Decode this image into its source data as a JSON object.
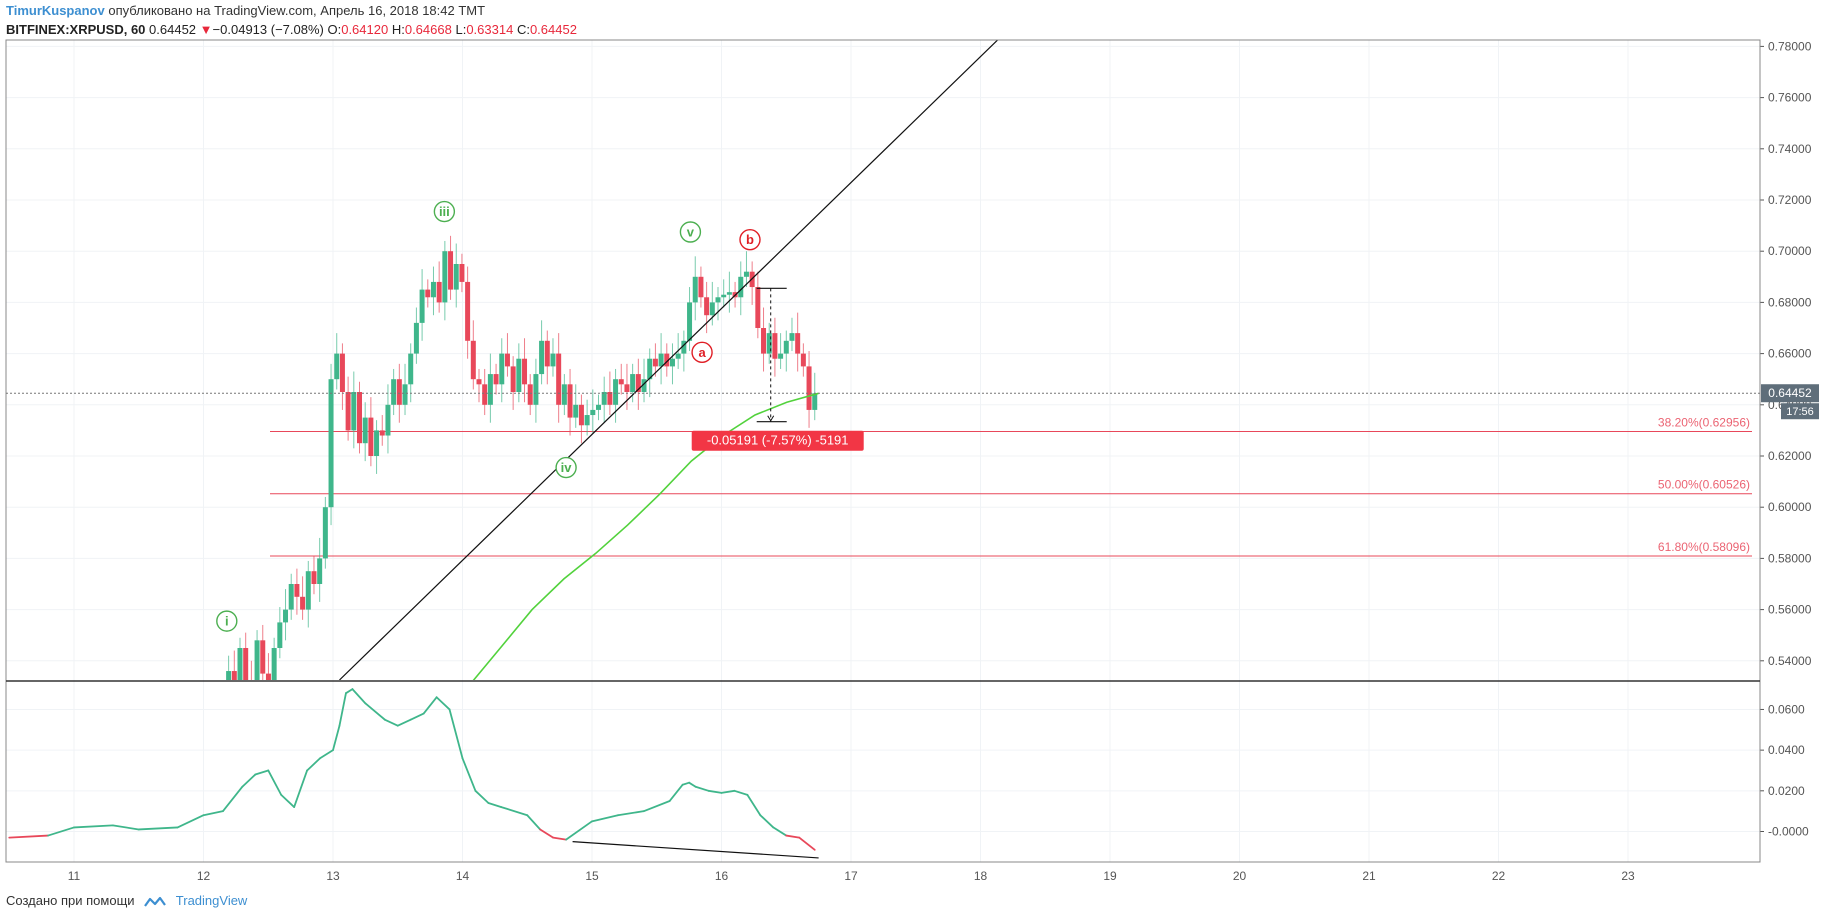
{
  "header": {
    "author": "TimurKuspanov",
    "published_text": "опубликовано на TradingView.com, Апрель 16, 2018 18:42 TMT",
    "symbol": "BITFINEX:XRPUSD, 60",
    "last": "0.64452",
    "arrow": "▼",
    "change": "−0.04913 (−7.08%)",
    "o_label": "O:",
    "o_value": "0.64120",
    "h_label": "H:",
    "h_value": "0.64668",
    "l_label": "L:",
    "l_value": "0.63314",
    "c_label": "C:",
    "c_value": "0.64452"
  },
  "footer": {
    "created_with": "Создано при помощи",
    "brand": "TradingView",
    "brand_icon": "tradingview-logo-icon"
  },
  "colors": {
    "up": "#3fb68b",
    "down": "#e8485a",
    "ma": "#52d23c",
    "fib": "#e8485a",
    "wave_green": "#4caf50",
    "wave_red": "#e01f26",
    "grid": "#f0f3f6"
  },
  "chart_data": {
    "type": "candlestick",
    "x_ticks": [
      "11",
      "12",
      "13",
      "14",
      "15",
      "16",
      "17",
      "18",
      "19",
      "20",
      "21",
      "22",
      "23"
    ],
    "y_ticks": [
      "0.54000",
      "0.56000",
      "0.58000",
      "0.60000",
      "0.62000",
      "0.64000",
      "0.66000",
      "0.68000",
      "0.70000",
      "0.72000",
      "0.74000",
      "0.76000",
      "0.78000"
    ],
    "ylim": [
      0.5325,
      0.7825
    ],
    "price_label": "0.64452",
    "timer_label": "17:56",
    "candles_close": [
      0.522,
      0.536,
      0.529,
      0.545,
      0.532,
      0.528,
      0.548,
      0.535,
      0.52,
      0.545,
      0.555,
      0.56,
      0.57,
      0.565,
      0.56,
      0.575,
      0.57,
      0.58,
      0.6,
      0.65,
      0.66,
      0.645,
      0.63,
      0.645,
      0.625,
      0.635,
      0.62,
      0.63,
      0.628,
      0.64,
      0.65,
      0.64,
      0.648,
      0.66,
      0.672,
      0.685,
      0.682,
      0.688,
      0.68,
      0.7,
      0.685,
      0.695,
      0.688,
      0.665,
      0.65,
      0.648,
      0.64,
      0.652,
      0.648,
      0.66,
      0.655,
      0.645,
      0.658,
      0.648,
      0.64,
      0.652,
      0.665,
      0.655,
      0.66,
      0.64,
      0.648,
      0.635,
      0.64,
      0.632,
      0.636,
      0.638,
      0.64,
      0.645,
      0.64,
      0.65,
      0.648,
      0.645,
      0.652,
      0.645,
      0.65,
      0.658,
      0.655,
      0.66,
      0.655,
      0.658,
      0.66,
      0.665,
      0.68,
      0.69,
      0.682,
      0.675,
      0.68,
      0.682,
      0.683,
      0.684,
      0.682,
      0.69,
      0.692,
      0.686,
      0.67,
      0.66,
      0.668,
      0.658,
      0.66,
      0.665,
      0.668,
      0.66,
      0.655,
      0.638,
      0.6445
    ],
    "ma_series": [
      0.5,
      0.53,
      0.545,
      0.56,
      0.572,
      0.582,
      0.593,
      0.605,
      0.618,
      0.628,
      0.636,
      0.641,
      0.6445
    ],
    "trendline": {
      "x0": 13.05,
      "y0": 0.5325,
      "x1": 16.15,
      "y1": 0.685
    },
    "fib_levels": [
      {
        "label": "38.20%(0.62956)",
        "value": 0.62956
      },
      {
        "label": "50.00%(0.60526)",
        "value": 0.60526
      },
      {
        "label": "61.80%(0.58096)",
        "value": 0.58096
      }
    ],
    "measure": {
      "from": 0.6855,
      "to": 0.6334,
      "label": "-0.05191 (-7.57%) -5191"
    },
    "wave_labels": [
      {
        "text": "i",
        "x": 12.18,
        "y": 0.5555,
        "color": "green"
      },
      {
        "text": "iii",
        "x": 13.86,
        "y": 0.7155,
        "color": "green"
      },
      {
        "text": "iv",
        "x": 14.8,
        "y": 0.6155,
        "color": "green"
      },
      {
        "text": "v",
        "x": 15.76,
        "y": 0.7075,
        "color": "green"
      },
      {
        "text": "a",
        "x": 15.85,
        "y": 0.6605,
        "color": "red"
      },
      {
        "text": "b",
        "x": 16.22,
        "y": 0.7045,
        "color": "red"
      }
    ],
    "oscillator": {
      "y_ticks": [
        "0.0600",
        "0.0400",
        "0.0200",
        "-0.0000"
      ],
      "ylim": [
        -0.015,
        0.0735
      ],
      "x": [
        10.5,
        10.8,
        11.0,
        11.3,
        11.5,
        11.8,
        12.0,
        12.15,
        12.3,
        12.4,
        12.5,
        12.6,
        12.7,
        12.8,
        12.9,
        13.0,
        13.05,
        13.1,
        13.15,
        13.25,
        13.4,
        13.5,
        13.6,
        13.7,
        13.8,
        13.9,
        14.0,
        14.1,
        14.2,
        14.3,
        14.5,
        14.6,
        14.7,
        14.8,
        15.0,
        15.2,
        15.4,
        15.6,
        15.7,
        15.75,
        15.8,
        15.9,
        16.0,
        16.1,
        16.2,
        16.3,
        16.4,
        16.5,
        16.6,
        16.72
      ],
      "y": [
        -0.003,
        -0.002,
        0.002,
        0.003,
        0.001,
        0.002,
        0.008,
        0.01,
        0.022,
        0.028,
        0.03,
        0.018,
        0.012,
        0.03,
        0.036,
        0.04,
        0.052,
        0.068,
        0.07,
        0.063,
        0.055,
        0.052,
        0.055,
        0.058,
        0.066,
        0.06,
        0.036,
        0.02,
        0.014,
        0.012,
        0.008,
        0.001,
        -0.003,
        -0.004,
        0.005,
        0.008,
        0.01,
        0.015,
        0.023,
        0.024,
        0.022,
        0.02,
        0.019,
        0.02,
        0.018,
        0.008,
        0.002,
        -0.002,
        -0.003,
        -0.009
      ],
      "divergence_line": {
        "x0": 14.85,
        "y0": -0.005,
        "x1": 16.75,
        "y1": -0.013
      }
    }
  }
}
